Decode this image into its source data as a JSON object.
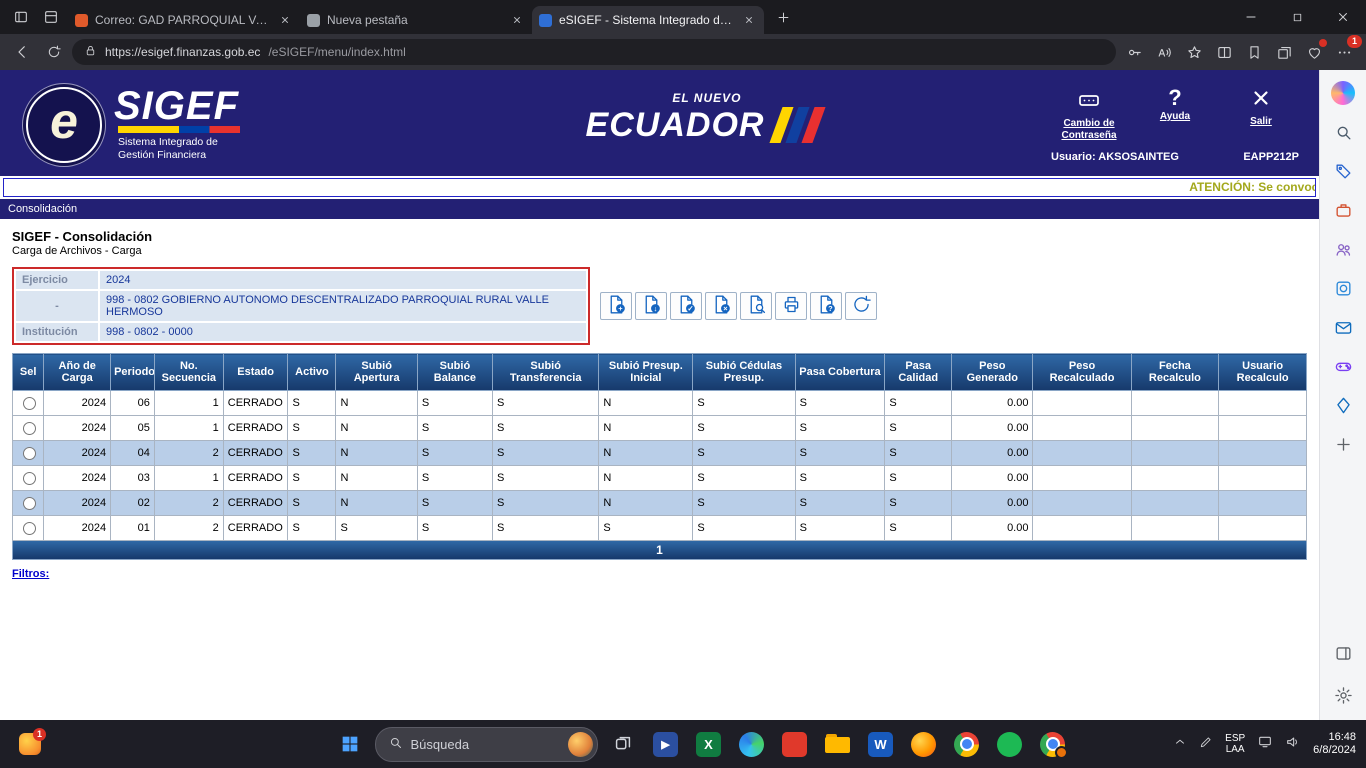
{
  "browser": {
    "tabs": [
      {
        "title": "Correo: GAD PARROQUIAL VALLE",
        "active": false,
        "favicon_color": "#e05a2b"
      },
      {
        "title": "Nueva pestaña",
        "active": false,
        "favicon_color": "#9aa0a6"
      },
      {
        "title": "eSIGEF - Sistema Integrado de G",
        "active": true,
        "favicon_color": "#2f6fd6"
      }
    ],
    "url_domain": "https://esigef.finanzas.gob.ec",
    "url_path": "/eSIGEF/menu/index.html",
    "nav_icons": [
      "key-icon",
      "read-aloud-icon",
      "favorite-star-icon",
      "split-screen-icon",
      "favorites-bar-icon",
      "collections-icon",
      "essentials-icon",
      "more-menu-icon"
    ],
    "more_badge": "1"
  },
  "site": {
    "logo": {
      "e": "e",
      "name": "SIGEF",
      "subtitle_line1": "Sistema Integrado de",
      "subtitle_line2": "Gestión Financiera"
    },
    "brand": {
      "top": "EL NUEVO",
      "name": "ECUADOR",
      "stripe_colors": [
        "#ffd500",
        "#1040a0",
        "#e83030"
      ]
    },
    "header_actions": [
      {
        "label": "Cambio de Contraseña",
        "icon": "password-lock-icon"
      },
      {
        "label": "Ayuda",
        "icon": "question-icon"
      },
      {
        "label": "Salir",
        "icon": "close-x-icon"
      }
    ],
    "user_label": "Usuario: AKSOSAINTEG",
    "station": "EAPP212P",
    "marquee": "ATENCIÓN: Se convoca",
    "menu_bar": "Consolidación",
    "page_title": "SIGEF - Consolidación",
    "page_subtitle": "Carga de Archivos - Carga",
    "form_rows": [
      {
        "label": "Ejercicio",
        "value": "2024"
      },
      {
        "label": "-",
        "value": "998 - 0802 GOBIERNO AUTONOMO DESCENTRALIZADO PARROQUIAL RURAL VALLE HERMOSO"
      },
      {
        "label": "Institución",
        "value": "998 - 0802 - 0000"
      }
    ],
    "toolbar_icons": [
      "new-file-icon",
      "upload-file-icon",
      "validate-file-icon",
      "delete-file-icon",
      "preview-file-icon",
      "print-icon",
      "confirm-file-icon",
      "reload-icon"
    ],
    "table": {
      "columns": [
        "Sel",
        "Año de Carga",
        "Periodo",
        "No. Secuencia",
        "Estado",
        "Activo",
        "Subió Apertura",
        "Subió Balance",
        "Subió Transferencia",
        "Subió Presup. Inicial",
        "Subió Cédulas Presup.",
        "Pasa Cobertura",
        "Pasa Calidad",
        "Peso Generado",
        "Peso Recalculado",
        "Fecha Recalculo",
        "Usuario Recalculo"
      ],
      "rows": [
        [
          "2024",
          "06",
          "1",
          "CERRADO",
          "S",
          "N",
          "S",
          "S",
          "N",
          "S",
          "S",
          "S",
          "0.00",
          "",
          "",
          ""
        ],
        [
          "2024",
          "05",
          "1",
          "CERRADO",
          "S",
          "N",
          "S",
          "S",
          "N",
          "S",
          "S",
          "S",
          "0.00",
          "",
          "",
          ""
        ],
        [
          "2024",
          "04",
          "2",
          "CERRADO",
          "S",
          "N",
          "S",
          "S",
          "N",
          "S",
          "S",
          "S",
          "0.00",
          "",
          "",
          ""
        ],
        [
          "2024",
          "03",
          "1",
          "CERRADO",
          "S",
          "N",
          "S",
          "S",
          "N",
          "S",
          "S",
          "S",
          "0.00",
          "",
          "",
          ""
        ],
        [
          "2024",
          "02",
          "2",
          "CERRADO",
          "S",
          "N",
          "S",
          "S",
          "N",
          "S",
          "S",
          "S",
          "0.00",
          "",
          "",
          ""
        ],
        [
          "2024",
          "01",
          "2",
          "CERRADO",
          "S",
          "S",
          "S",
          "S",
          "S",
          "S",
          "S",
          "S",
          "0.00",
          "",
          "",
          ""
        ]
      ],
      "page_number": "1"
    },
    "filters_label": "Filtros:"
  },
  "sidebar_icons": [
    "copilot-icon",
    "search-icon",
    "shopping-icon",
    "office-icon",
    "people-icon",
    "designer-icon",
    "outlook-icon",
    "games-icon",
    "drop-icon",
    "add-icon"
  ],
  "sidebar_bottom_icons": [
    "panel-icon",
    "settings-icon"
  ],
  "taskbar": {
    "search_label": "Búsqueda",
    "widgets_badge": "1",
    "apps": [
      "task-view-icon",
      "movies-icon",
      "excel-icon",
      "edge-icon",
      "red-app-icon",
      "folder-icon",
      "word-icon",
      "firefox-icon",
      "chrome-icon",
      "spotify-icon",
      "chrome-profile-icon"
    ],
    "tray": {
      "lang_top": "ESP",
      "lang_bottom": "LAA",
      "time": "16:48",
      "date": "6/8/2024"
    }
  }
}
